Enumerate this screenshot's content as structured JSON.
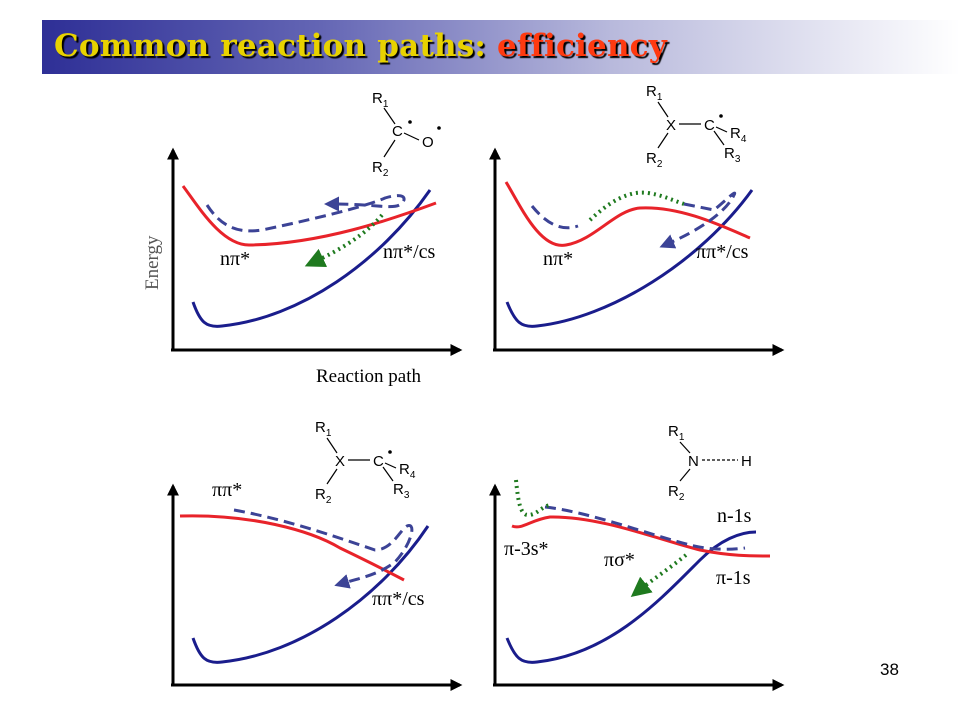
{
  "title": {
    "main": "Common reaction paths: ",
    "accent": "efficiency"
  },
  "colors": {
    "red": "#e8232a",
    "blue": "#1a1d8c",
    "dashed": "#3c4396",
    "green": "#1f7a1f",
    "title_yellow": "#e8d200",
    "title_red": "#ff3a10"
  },
  "axes": {
    "y_label": "Energy",
    "x_label": "Reaction path"
  },
  "panels": {
    "top_left": {
      "labels": [
        "nπ*",
        "nπ*/cs"
      ]
    },
    "top_right": {
      "labels": [
        "nπ*",
        "ππ*/cs"
      ]
    },
    "bottom_left": {
      "labels": [
        "ππ*",
        "ππ*/cs"
      ]
    },
    "bottom_right": {
      "labels": [
        "π-3s*",
        "πσ*",
        "n-1s",
        "π-1s"
      ]
    }
  },
  "structures": {
    "carbonyl": {
      "r1": "R",
      "r1_sub": "1",
      "c": "C",
      "o": "O",
      "r2": "R",
      "r2_sub": "2"
    },
    "x_c_top": {
      "r1": "R",
      "r1_sub": "1",
      "x": "X",
      "c": "C",
      "r2": "R",
      "r2_sub": "2",
      "r4": "R",
      "r4_sub": "4",
      "r3": "R",
      "r3_sub": "3"
    },
    "x_c_bottom": {
      "r1": "R",
      "r1_sub": "1",
      "x": "X",
      "c": "C",
      "r2": "R",
      "r2_sub": "2",
      "r4": "R",
      "r4_sub": "4",
      "r3": "R",
      "r3_sub": "3"
    },
    "amine": {
      "r1": "R",
      "r1_sub": "1",
      "n": "N",
      "h": "H",
      "r2": "R",
      "r2_sub": "2"
    }
  },
  "page_number": "38"
}
